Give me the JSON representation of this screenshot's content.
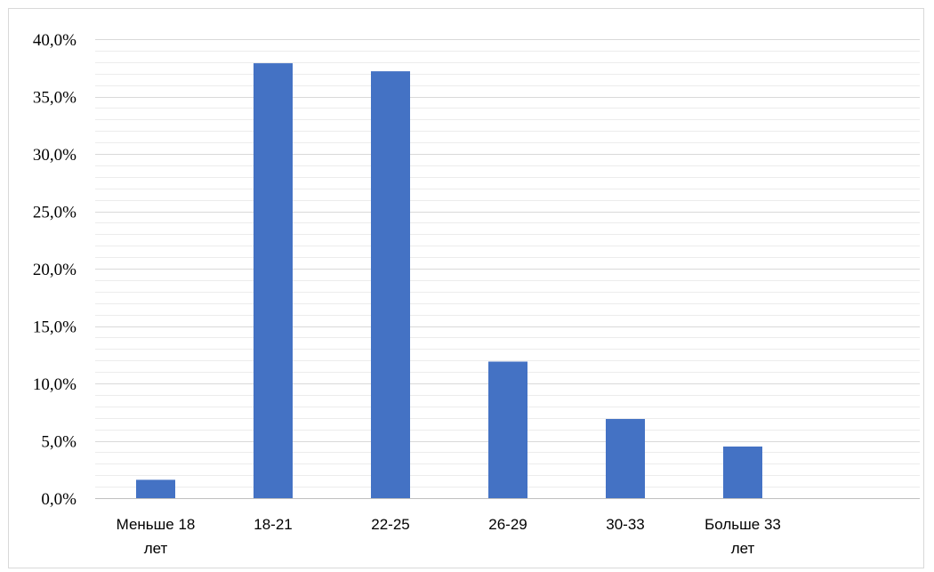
{
  "chart_data": {
    "type": "bar",
    "title": "",
    "xlabel": "",
    "ylabel": "",
    "categories": [
      [
        "Меньше 18",
        "лет"
      ],
      [
        "18-21"
      ],
      [
        "22-25"
      ],
      [
        "26-29"
      ],
      [
        "30-33"
      ],
      [
        "Больше 33",
        "лет"
      ]
    ],
    "values": [
      1.6,
      37.9,
      37.2,
      11.9,
      6.9,
      4.5
    ],
    "ylim": [
      0,
      40
    ],
    "y_ticks": [
      0,
      5,
      10,
      15,
      20,
      25,
      30,
      35,
      40
    ],
    "y_tick_labels": [
      "0,0%",
      "5,0%",
      "10,0%",
      "15,0%",
      "20,0%",
      "25,0%",
      "30,0%",
      "35,0%",
      "40,0%"
    ],
    "grid": true,
    "minor_grid": true,
    "legend": "none",
    "colors": {
      "bar": "#4472c4",
      "major_grid": "#d9d9d9",
      "minor_grid": "#ececec",
      "axis": "#bfbfbf"
    }
  }
}
